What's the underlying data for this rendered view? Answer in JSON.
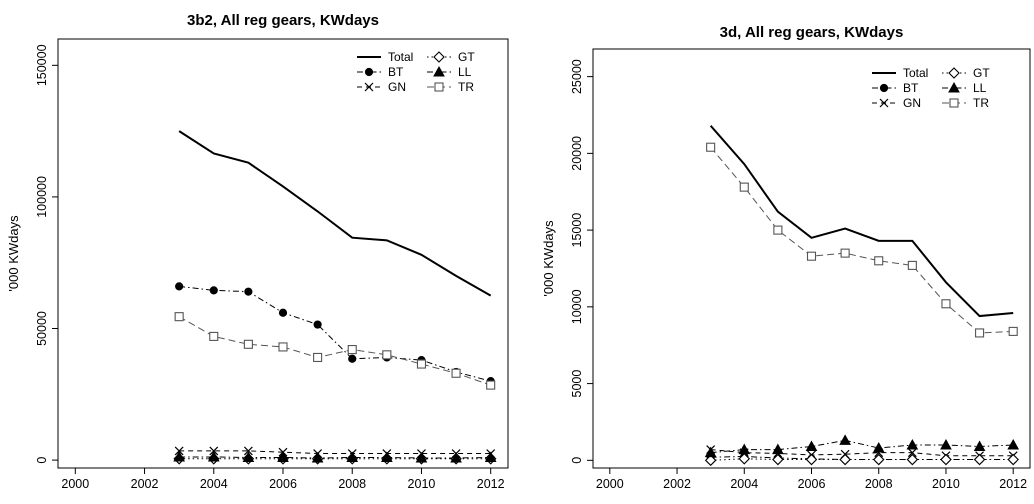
{
  "chart_data": [
    {
      "type": "line",
      "title": "3b2, All reg gears, KWdays",
      "xlabel": "",
      "ylabel": "'000 KWdays",
      "xlim": [
        1999.5,
        2012.5
      ],
      "ylim": [
        -3000,
        160000
      ],
      "xticks": [
        2000,
        2002,
        2004,
        2006,
        2008,
        2010,
        2012
      ],
      "yticks": [
        0,
        50000,
        100000,
        150000
      ],
      "grid": false,
      "legend_position": "top-right",
      "x": [
        2003,
        2004,
        2005,
        2006,
        2007,
        2008,
        2009,
        2010,
        2011,
        2012
      ],
      "series": [
        {
          "name": "Total",
          "marker": "none",
          "dash": "solid",
          "width": 2,
          "color": "#000000",
          "values": [
            125000,
            116500,
            113000,
            104000,
            94500,
            84500,
            83500,
            78000,
            70000,
            62500
          ]
        },
        {
          "name": "BT",
          "marker": "dot",
          "dash": "dashdot",
          "width": 1,
          "color": "#000000",
          "values": [
            66000,
            64500,
            64000,
            56000,
            51500,
            38500,
            39000,
            38000,
            33500,
            30000
          ]
        },
        {
          "name": "GN",
          "marker": "x",
          "dash": "dash",
          "width": 1,
          "color": "#000000",
          "values": [
            3500,
            3500,
            3500,
            3000,
            2500,
            2500,
            2500,
            2500,
            2500,
            2500
          ]
        },
        {
          "name": "GT",
          "marker": "diamond",
          "dash": "dot",
          "width": 1,
          "color": "#000000",
          "values": [
            500,
            500,
            500,
            500,
            500,
            500,
            500,
            500,
            500,
            500
          ]
        },
        {
          "name": "LL",
          "marker": "triangle",
          "dash": "dashdot",
          "width": 1,
          "color": "#000000",
          "values": [
            1200,
            1200,
            1000,
            1000,
            800,
            1000,
            1000,
            800,
            800,
            1000
          ]
        },
        {
          "name": "TR",
          "marker": "square",
          "dash": "longdash",
          "width": 1,
          "color": "#555555",
          "values": [
            54500,
            47000,
            44000,
            43000,
            39000,
            42000,
            40000,
            36500,
            33000,
            28500
          ]
        }
      ]
    },
    {
      "type": "line",
      "title": "3d, All reg gears, KWdays",
      "xlabel": "",
      "ylabel": "'000 KWdays",
      "xlim": [
        1999.5,
        2012.5
      ],
      "ylim": [
        -500,
        26800
      ],
      "xticks": [
        2000,
        2002,
        2004,
        2006,
        2008,
        2010,
        2012
      ],
      "yticks": [
        0,
        5000,
        10000,
        15000,
        20000,
        25000
      ],
      "grid": false,
      "legend_position": "top-right",
      "x": [
        2003,
        2004,
        2005,
        2006,
        2007,
        2008,
        2009,
        2010,
        2011,
        2012
      ],
      "series": [
        {
          "name": "Total",
          "marker": "none",
          "dash": "solid",
          "width": 2,
          "color": "#000000",
          "values": [
            21800,
            19300,
            16200,
            14500,
            15100,
            14300,
            14300,
            11600,
            9400,
            9600
          ]
        },
        {
          "name": "BT",
          "marker": "dot",
          "dash": "dashdot",
          "width": 1,
          "color": "#000000",
          "values": [
            200,
            250,
            150,
            100,
            50,
            50,
            50,
            50,
            50,
            50
          ]
        },
        {
          "name": "GN",
          "marker": "x",
          "dash": "dash",
          "width": 1,
          "color": "#000000",
          "values": [
            700,
            500,
            450,
            350,
            400,
            500,
            500,
            300,
            300,
            300
          ]
        },
        {
          "name": "GT",
          "marker": "diamond",
          "dash": "dot",
          "width": 1,
          "color": "#000000",
          "values": [
            0,
            100,
            50,
            50,
            50,
            50,
            50,
            50,
            50,
            50
          ]
        },
        {
          "name": "LL",
          "marker": "triangle",
          "dash": "dashdot",
          "width": 1,
          "color": "#000000",
          "values": [
            500,
            700,
            700,
            900,
            1300,
            800,
            1000,
            1000,
            900,
            1000
          ]
        },
        {
          "name": "TR",
          "marker": "square",
          "dash": "longdash",
          "width": 1,
          "color": "#555555",
          "values": [
            20400,
            17800,
            15000,
            13300,
            13500,
            13000,
            12700,
            10200,
            8300,
            8400
          ]
        }
      ]
    }
  ]
}
